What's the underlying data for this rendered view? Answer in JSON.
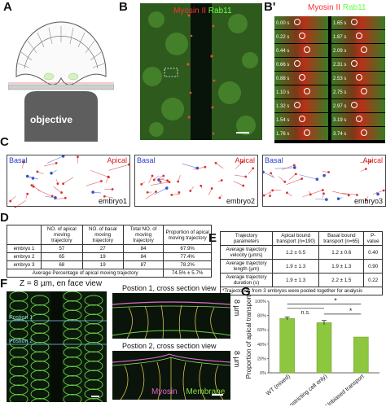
{
  "panels": {
    "a": "A",
    "b": "B",
    "bprime": "B'",
    "c": "C",
    "d": "D",
    "e": "E",
    "f": "F",
    "g": "G"
  },
  "panel_a": {
    "objective_label": "objective"
  },
  "panel_b": {
    "myosin": "Myosin II",
    "rab11": "Rab11"
  },
  "panel_bprime": {
    "myosin": "Myosin II",
    "rab11": "Rab11",
    "times_left": [
      "0.00 s",
      "0.22 s",
      "0.44 s",
      "0.66 s",
      "0.88 s",
      "1.10 s",
      "1.32 s",
      "1.54 s",
      "1.76 s"
    ],
    "times_right": [
      "1.65 s",
      "1.87 s",
      "2.09 s",
      "2.31 s",
      "2.53 s",
      "2.75 s",
      "2.97 s",
      "3.19 s",
      "3.74 s"
    ]
  },
  "panel_c": {
    "basal": "Basal",
    "apical": "Apical",
    "embryos": [
      "embryo1",
      "embryo2",
      "embryo3"
    ]
  },
  "panel_d": {
    "headers": [
      "",
      "NO. of apical moving trajectory",
      "NO. of basal moving trajectory",
      "Total NO. of moving trajectory",
      "Proportion of apical moving trajectory"
    ],
    "rows": [
      [
        "embryo 1",
        "57",
        "27",
        "84",
        "67.9%"
      ],
      [
        "embryo 2",
        "65",
        "19",
        "84",
        "77.4%"
      ],
      [
        "embryo 3",
        "68",
        "19",
        "87",
        "78.2%"
      ]
    ],
    "avg_label": "Average Percentage of apical moving trajectory",
    "avg_value": "74.5% ± 5.7%"
  },
  "panel_e": {
    "headers": [
      "Trajectory parameters",
      "Apical bound transport (n=190)",
      "Basal bound transport (n=65)",
      "P-value"
    ],
    "rows": [
      [
        "Average trajectory velocity (µm/s)",
        "1.2 ± 0.5",
        "1.2 ± 0.6",
        "0.40"
      ],
      [
        "Average trajectory length (µm)",
        "1.9 ± 1.3",
        "1.9 ± 1.3",
        "0.90"
      ],
      [
        "Average trajectory duration (s)",
        "1.9 ± 1.3",
        "2.2 ± 1.5",
        "0.22"
      ]
    ],
    "footnote": "*Trajectories from 3 embryos were pooled together for analysis"
  },
  "panel_f": {
    "title": "Z = 8 µm, en face view",
    "pos1": "Postion 1",
    "pos2": "Postion 2",
    "cs1": "Postion 1, cross section view",
    "cs2": "Postion 2, cross section view",
    "scale1": "8 µm",
    "scale2": "8 µm",
    "myosin": "Myosin",
    "membrane": "Membrane"
  },
  "chart_data": {
    "type": "bar",
    "categories": [
      "WT (mixed)",
      "WT (constricting cell only)",
      "Unbiased transport"
    ],
    "values": [
      76,
      70,
      50
    ],
    "errors": [
      2,
      3,
      0
    ],
    "ylabel": "Proportion of apical transport",
    "yticks": [
      "0%",
      "20%",
      "40%",
      "60%",
      "80%",
      "100%"
    ],
    "ylim": [
      0,
      100
    ],
    "annotations": [
      "n.s.",
      "*",
      "*"
    ],
    "bar_color": "#8dc63f"
  }
}
